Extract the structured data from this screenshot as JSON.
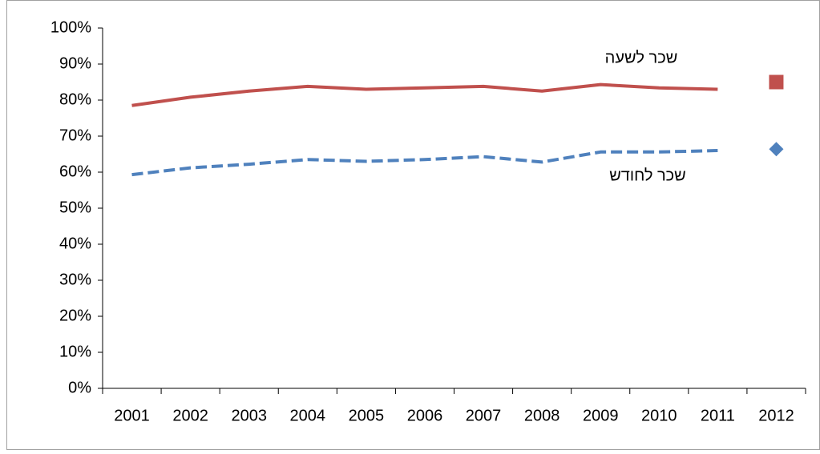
{
  "chart_data": {
    "type": "line",
    "categories": [
      "2001",
      "2002",
      "2003",
      "2004",
      "2005",
      "2006",
      "2007",
      "2008",
      "2009",
      "2010",
      "2011",
      "2012"
    ],
    "series": [
      {
        "name": "שכר לשעה",
        "color": "#c0504d",
        "style": "solid",
        "values": [
          78.5,
          80.8,
          82.5,
          83.8,
          83,
          83.4,
          83.8,
          82.5,
          84.3,
          83.4,
          83,
          null
        ]
      },
      {
        "name": "שכר לחודש",
        "color": "#4f81bd",
        "style": "dashed",
        "values": [
          59.3,
          61.2,
          62.2,
          63.5,
          63,
          63.5,
          64.3,
          62.8,
          65.6,
          65.6,
          66,
          null
        ]
      },
      {
        "color": "#c0504d",
        "style": "marker",
        "marker": "square",
        "values": [
          null,
          null,
          null,
          null,
          null,
          null,
          null,
          null,
          null,
          null,
          null,
          85
        ]
      },
      {
        "color": "#4f81bd",
        "style": "marker",
        "marker": "diamond",
        "values": [
          null,
          null,
          null,
          null,
          null,
          null,
          null,
          null,
          null,
          null,
          null,
          66.4
        ]
      }
    ],
    "ylim": [
      0,
      100
    ],
    "yticks": [
      {
        "value": 0,
        "label": "0%"
      },
      {
        "value": 10,
        "label": "10%"
      },
      {
        "value": 20,
        "label": "20%"
      },
      {
        "value": 30,
        "label": "30%"
      },
      {
        "value": 40,
        "label": "40%"
      },
      {
        "value": 50,
        "label": "50%"
      },
      {
        "value": 60,
        "label": "60%"
      },
      {
        "value": 70,
        "label": "70%"
      },
      {
        "value": 80,
        "label": "80%"
      },
      {
        "value": 90,
        "label": "90%"
      },
      {
        "value": 100,
        "label": "100%"
      }
    ],
    "grid": false
  }
}
